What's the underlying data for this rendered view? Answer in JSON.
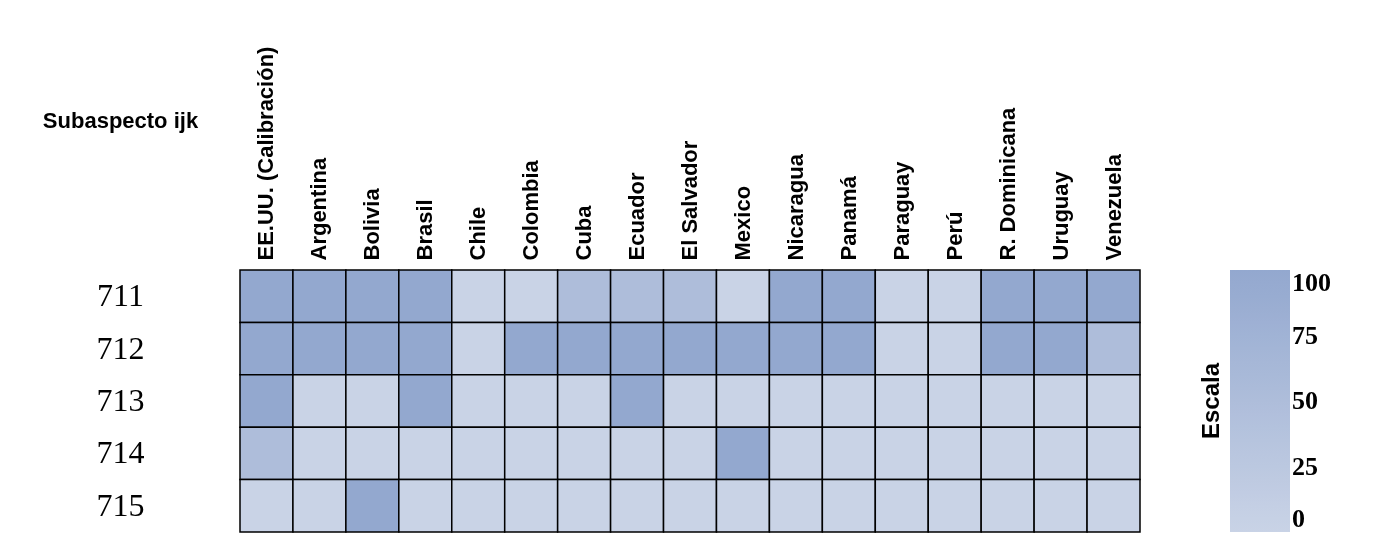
{
  "chart_data": {
    "type": "heatmap",
    "ylabel": "Subaspecto ijk",
    "clabel": "Escala",
    "categories": [
      "EE.UU. (Calibración)",
      "Argentina",
      "Bolivia",
      "Brasil",
      "Chile",
      "Colombia",
      "Cuba",
      "Ecuador",
      "El Salvador",
      "Mexico",
      "Nicaragua",
      "Panamá",
      "Paraguay",
      "Perú",
      "R. Dominicana",
      "Uruguay",
      "Venezuela"
    ],
    "y_categories": [
      "711",
      "712",
      "713",
      "714",
      "715"
    ],
    "cells": [
      [
        100,
        100,
        100,
        100,
        0,
        0,
        50,
        50,
        50,
        0,
        100,
        100,
        0,
        0,
        100,
        100,
        100
      ],
      [
        100,
        100,
        100,
        100,
        0,
        100,
        100,
        100,
        100,
        100,
        100,
        100,
        0,
        0,
        100,
        100,
        50
      ],
      [
        100,
        0,
        0,
        100,
        0,
        0,
        0,
        100,
        0,
        0,
        0,
        0,
        0,
        0,
        0,
        0,
        0
      ],
      [
        50,
        0,
        0,
        0,
        0,
        0,
        0,
        0,
        0,
        100,
        0,
        0,
        0,
        0,
        0,
        0,
        0
      ],
      [
        0,
        0,
        100,
        0,
        0,
        0,
        0,
        0,
        0,
        0,
        0,
        0,
        0,
        0,
        0,
        0,
        0
      ]
    ],
    "clim": [
      0,
      100
    ],
    "cticks": [
      0,
      25,
      50,
      75,
      100
    ]
  }
}
